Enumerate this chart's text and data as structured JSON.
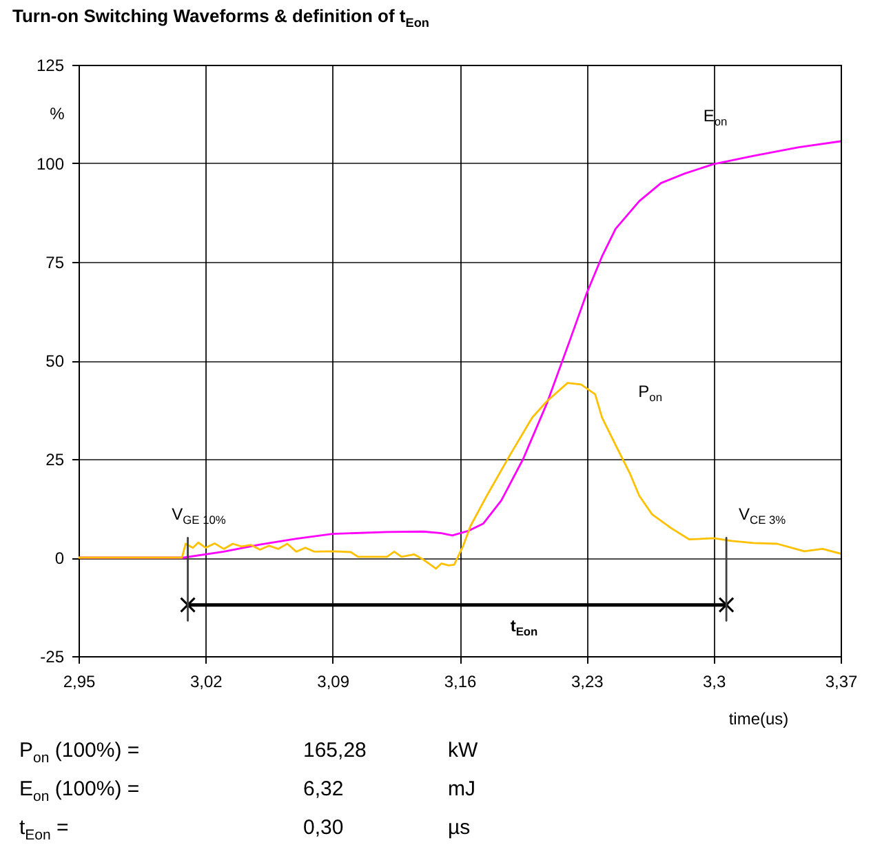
{
  "chart_data": {
    "type": "line",
    "title": "Turn-on Switching Waveforms & definition of t$_{Eon}$",
    "xlabel": "time(us)",
    "ylabel": "%",
    "xlim": [
      2.95,
      3.37
    ],
    "xticks": [
      {
        "value": 2.95,
        "label": "2,95"
      },
      {
        "value": 3.02,
        "label": "3,02"
      },
      {
        "value": 3.09,
        "label": "3,09"
      },
      {
        "value": 3.16,
        "label": "3,16"
      },
      {
        "value": 3.23,
        "label": "3,23"
      },
      {
        "value": 3.3,
        "label": "3,3"
      },
      {
        "value": 3.37,
        "label": "3,37"
      }
    ],
    "ylim": [
      -25,
      125
    ],
    "yticks": [
      -25,
      0,
      25,
      50,
      75,
      100,
      125
    ],
    "grid": true,
    "series": [
      {
        "name": "E$_{on}$",
        "color": "#ff00ff",
        "x": [
          2.95,
          3.008,
          3.03,
          3.05,
          3.07,
          3.09,
          3.12,
          3.14,
          3.15,
          3.156,
          3.165,
          3.173,
          3.183,
          3.195,
          3.208,
          3.221,
          3.23,
          3.2385,
          3.246,
          3.259,
          3.271,
          3.284,
          3.3,
          3.322,
          3.347,
          3.37
        ],
        "values": [
          0,
          0,
          1.5,
          3.3,
          4.8,
          6,
          6.5,
          6.6,
          6.2,
          5.6,
          6.8,
          8.6,
          14.5,
          25,
          39,
          55.4,
          67,
          76.4,
          83.4,
          90.4,
          95,
          97.4,
          99.8,
          101.9,
          104.1,
          105.6
        ]
      },
      {
        "name": "P$_{on}$",
        "color": "#ffc000",
        "x": [
          2.95,
          3.007,
          3.009,
          3.013,
          3.016,
          3.02,
          3.025,
          3.03,
          3.035,
          3.04,
          3.045,
          3.05,
          3.055,
          3.06,
          3.065,
          3.07,
          3.075,
          3.08,
          3.09,
          3.1,
          3.104,
          3.12,
          3.124,
          3.128,
          3.135,
          3.14,
          3.147,
          3.15,
          3.154,
          3.157,
          3.162,
          3.166,
          3.175,
          3.188,
          3.2,
          3.208,
          3.2195,
          3.227,
          3.2347,
          3.2385,
          3.246,
          3.2537,
          3.259,
          3.266,
          3.2765,
          3.2866,
          3.3,
          3.31,
          3.322,
          3.335,
          3.35,
          3.36,
          3.37
        ],
        "values": [
          0,
          0,
          3.5,
          2.5,
          3.8,
          2.5,
          3.6,
          2.2,
          3.5,
          2.8,
          3.2,
          2,
          3,
          2.2,
          3.5,
          1.5,
          2.5,
          1.5,
          1.6,
          1.4,
          0.2,
          0.2,
          1.5,
          0.2,
          0.8,
          -0.5,
          -2.8,
          -1.5,
          -2,
          -1.8,
          3,
          8,
          15.7,
          26.2,
          35.5,
          39.6,
          44.3,
          43.9,
          41.4,
          35.5,
          28.5,
          21.5,
          15.7,
          11,
          7.5,
          4.6,
          4.9,
          4.2,
          3.7,
          3.5,
          1.6,
          2.2,
          1
        ]
      },
      {
        "name": "t$_{Eon}$",
        "color": "#000000",
        "marker": "cross",
        "x": [
          3.0102,
          3.307
        ],
        "values": [
          -12,
          -12
        ]
      },
      {
        "name": "V$_{GE 10%}$",
        "color": "#404040",
        "x": [
          3.0102,
          3.0102
        ],
        "values": [
          -16,
          5
        ]
      },
      {
        "name": "V$_{CE 3%}$",
        "color": "#404040",
        "x": [
          3.307,
          3.307
        ],
        "values": [
          -16,
          5
        ]
      }
    ],
    "annotations": [
      "P$_{on}$ (100%) =",
      "165,28",
      "kW",
      "E$_{on}$ (100%) =",
      "6,32",
      "mJ",
      "t$_{Eon}$ =",
      "0,30",
      "µs"
    ]
  }
}
